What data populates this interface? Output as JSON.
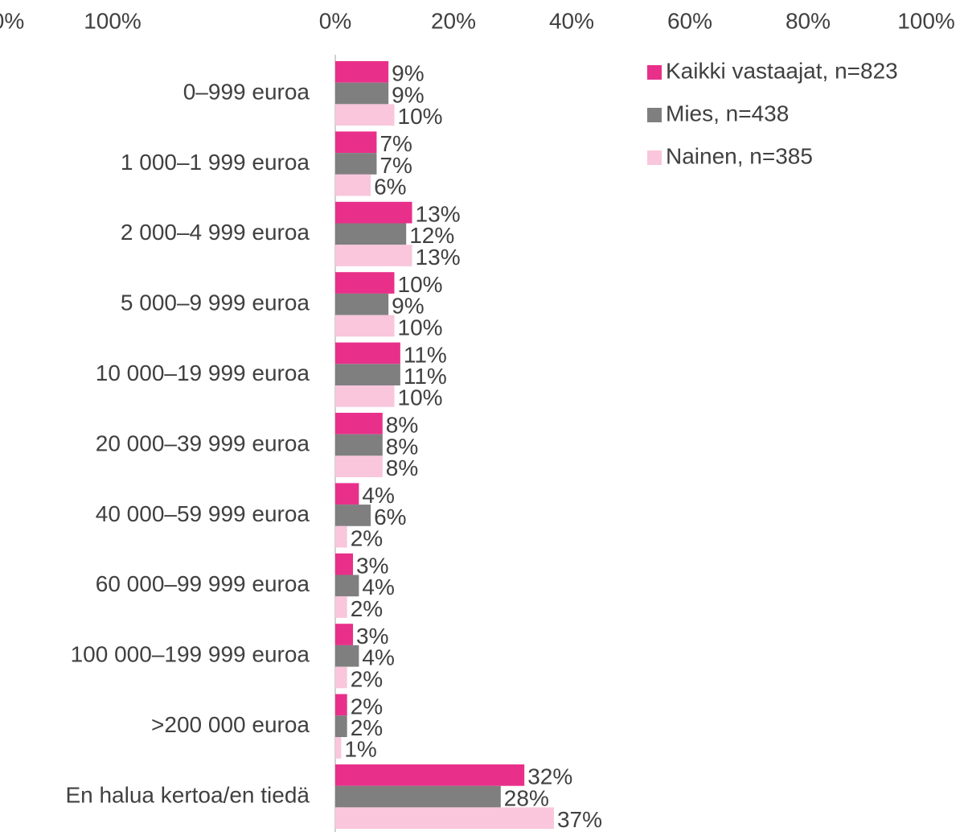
{
  "chart_data": {
    "type": "barh",
    "partial_axis_labels": [
      "0%",
      "100%"
    ],
    "categories": [
      "0–999 euroa",
      "1 000–1 999 euroa",
      "2 000–4 999 euroa",
      "5 000–9 999 euroa",
      "10 000–19 999 euroa",
      "20 000–39 999 euroa",
      "40 000–59 999 euroa",
      "60 000–99 999 euroa",
      "100 000–199 999 euroa",
      ">200 000 euroa",
      "En halua kertoa/en tiedä"
    ],
    "series": [
      {
        "name": "Kaikki vastaajat, n=823",
        "color": "#e8308a",
        "values": [
          9,
          7,
          13,
          10,
          11,
          8,
          4,
          3,
          3,
          2,
          32
        ],
        "value_labels": [
          "9%",
          "7%",
          "13%",
          "10%",
          "11%",
          "8%",
          "4%",
          "3%",
          "3%",
          "2%",
          "32%"
        ]
      },
      {
        "name": "Mies, n=438",
        "color": "#7f7f7f",
        "values": [
          9,
          7,
          12,
          9,
          11,
          8,
          6,
          4,
          4,
          2,
          28
        ],
        "value_labels": [
          "9%",
          "7%",
          "12%",
          "9%",
          "11%",
          "8%",
          "6%",
          "4%",
          "4%",
          "2%",
          "28%"
        ]
      },
      {
        "name": "Nainen, n=385",
        "color": "#f9c6dc",
        "values": [
          10,
          6,
          13,
          10,
          10,
          8,
          2,
          2,
          2,
          1,
          37
        ],
        "value_labels": [
          "10%",
          "6%",
          "13%",
          "10%",
          "10%",
          "8%",
          "2%",
          "2%",
          "2%",
          "1%",
          "37%"
        ]
      }
    ],
    "xlim": [
      0,
      100
    ],
    "xticks": [
      {
        "value": 0,
        "label": "0%"
      },
      {
        "value": 20,
        "label": "20%"
      },
      {
        "value": 40,
        "label": "40%"
      },
      {
        "value": 60,
        "label": "60%"
      },
      {
        "value": 80,
        "label": "80%"
      },
      {
        "value": 100,
        "label": "100%"
      }
    ],
    "legend": "upper right"
  }
}
